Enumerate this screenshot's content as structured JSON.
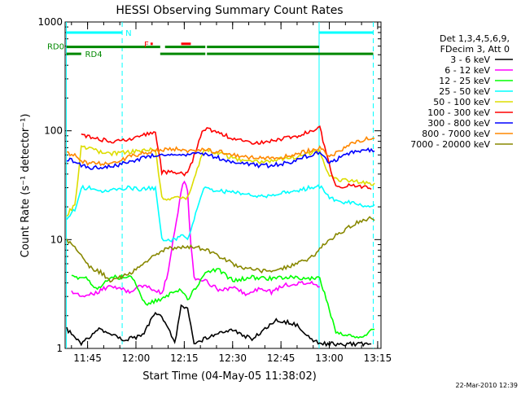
{
  "chart_data": {
    "type": "line",
    "title": "HESSI Observing Summary Count Rates",
    "xlabel": "Start Time (04-May-05 11:38:02)",
    "ylabel": "Count Rate (s⁻¹ detector⁻¹)",
    "y_scale": "log",
    "ylim": [
      1,
      1000
    ],
    "xlim_minutes": [
      0,
      98
    ],
    "x_axis_origin": "11:38:02",
    "x_ticks": [
      {
        "label": "11:45",
        "t": 6.97
      },
      {
        "label": "12:00",
        "t": 21.97
      },
      {
        "label": "12:15",
        "t": 36.97
      },
      {
        "label": "12:30",
        "t": 51.97
      },
      {
        "label": "12:45",
        "t": 66.97
      },
      {
        "label": "13:00",
        "t": 81.97
      },
      {
        "label": "13:15",
        "t": 96.97
      }
    ],
    "y_ticks": [
      {
        "label": "1",
        "v": 1
      },
      {
        "label": "10",
        "v": 10
      },
      {
        "label": "100",
        "v": 100
      },
      {
        "label": "1000",
        "v": 1000
      }
    ],
    "legend_header": [
      "Det 1,3,4,5,6,9,",
      "FDecim 3, Att 0"
    ],
    "legend_position": "right",
    "x_unit": "minutes after 11:38:02",
    "series": [
      {
        "name": "3 - 6 keV",
        "color": "#000000",
        "points": [
          [
            0.5,
            1.5
          ],
          [
            5,
            1.1
          ],
          [
            10,
            1.5
          ],
          [
            18,
            1.2
          ],
          [
            24,
            1.3
          ],
          [
            28,
            2.2
          ],
          [
            31,
            1.8
          ],
          [
            34,
            1.1
          ],
          [
            36,
            2.5
          ],
          [
            38,
            2.3
          ],
          [
            40,
            1.1
          ],
          [
            45,
            1.3
          ],
          [
            52,
            1.5
          ],
          [
            58,
            1.2
          ],
          [
            65,
            1.8
          ],
          [
            71,
            1.7
          ],
          [
            77,
            1.2
          ],
          [
            80,
            1.1
          ],
          [
            86,
            1.1
          ],
          [
            95,
            1.1
          ]
        ]
      },
      {
        "name": "6 - 12 keV",
        "color": "#ff00ff",
        "points": [
          [
            2,
            3.3
          ],
          [
            6,
            3.0
          ],
          [
            10,
            3.3
          ],
          [
            14,
            3.8
          ],
          [
            20,
            3.3
          ],
          [
            24,
            3.8
          ],
          [
            27,
            3.5
          ],
          [
            30,
            3.2
          ],
          [
            32,
            5
          ],
          [
            34,
            12
          ],
          [
            36,
            28
          ],
          [
            37,
            35
          ],
          [
            38,
            28
          ],
          [
            39,
            9
          ],
          [
            40,
            4.5
          ],
          [
            44,
            4.1
          ],
          [
            48,
            3.4
          ],
          [
            52,
            3.6
          ],
          [
            56,
            3.2
          ],
          [
            60,
            3.5
          ],
          [
            64,
            3.3
          ],
          [
            68,
            3.8
          ],
          [
            72,
            3.9
          ],
          [
            76,
            4.1
          ],
          [
            79,
            3.7
          ]
        ]
      },
      {
        "name": "12 - 25 keV",
        "color": "#00ff00",
        "points": [
          [
            2,
            4.5
          ],
          [
            6,
            4.5
          ],
          [
            10,
            3.5
          ],
          [
            14,
            4.5
          ],
          [
            18,
            4.5
          ],
          [
            21,
            4.5
          ],
          [
            25,
            2.5
          ],
          [
            29,
            2.8
          ],
          [
            33,
            3.2
          ],
          [
            36,
            3.5
          ],
          [
            38,
            2.8
          ],
          [
            44,
            5.2
          ],
          [
            48,
            5.2
          ],
          [
            52,
            4.2
          ],
          [
            58,
            4.5
          ],
          [
            64,
            4.4
          ],
          [
            70,
            4.5
          ],
          [
            76,
            4.4
          ],
          [
            79,
            4.5
          ],
          [
            84,
            1.4
          ],
          [
            88,
            1.3
          ],
          [
            92,
            1.3
          ],
          [
            96,
            1.5
          ]
        ]
      },
      {
        "name": "25 - 50 keV",
        "color": "#00ffff",
        "points": [
          [
            0.5,
            15
          ],
          [
            1.5,
            17
          ],
          [
            3,
            19
          ],
          [
            5,
            30
          ],
          [
            8,
            30
          ],
          [
            12,
            28
          ],
          [
            16,
            29
          ],
          [
            20,
            30
          ],
          [
            24,
            29
          ],
          [
            28,
            30
          ],
          [
            30,
            10
          ],
          [
            34,
            10
          ],
          [
            36,
            11
          ],
          [
            38,
            10
          ],
          [
            43,
            30
          ],
          [
            48,
            28
          ],
          [
            52,
            27
          ],
          [
            56,
            26
          ],
          [
            60,
            25
          ],
          [
            64,
            25
          ],
          [
            68,
            27
          ],
          [
            72,
            28
          ],
          [
            76,
            30
          ],
          [
            79,
            31
          ],
          [
            82,
            24
          ],
          [
            86,
            22
          ],
          [
            90,
            22
          ],
          [
            94,
            20
          ],
          [
            96,
            21
          ]
        ]
      },
      {
        "name": "50 - 100 keV",
        "color": "#dddd00",
        "points": [
          [
            0.5,
            16
          ],
          [
            1.5,
            19
          ],
          [
            3,
            20
          ],
          [
            5,
            70
          ],
          [
            8,
            68
          ],
          [
            12,
            62
          ],
          [
            16,
            62
          ],
          [
            20,
            64
          ],
          [
            24,
            66
          ],
          [
            28,
            68
          ],
          [
            30,
            24
          ],
          [
            34,
            24
          ],
          [
            38,
            24
          ],
          [
            43,
            68
          ],
          [
            48,
            62
          ],
          [
            52,
            56
          ],
          [
            56,
            52
          ],
          [
            60,
            52
          ],
          [
            64,
            53
          ],
          [
            68,
            56
          ],
          [
            72,
            58
          ],
          [
            76,
            62
          ],
          [
            79,
            65
          ],
          [
            82,
            38
          ],
          [
            86,
            35
          ],
          [
            90,
            34
          ],
          [
            94,
            33
          ],
          [
            96,
            33
          ]
        ]
      },
      {
        "name": "100 - 300 keV",
        "color": "#ff0000",
        "points": [
          [
            5,
            90
          ],
          [
            8,
            88
          ],
          [
            12,
            82
          ],
          [
            16,
            80
          ],
          [
            20,
            84
          ],
          [
            24,
            90
          ],
          [
            28,
            100
          ],
          [
            30,
            42
          ],
          [
            34,
            42
          ],
          [
            38,
            40
          ],
          [
            43,
            105
          ],
          [
            48,
            95
          ],
          [
            52,
            85
          ],
          [
            56,
            80
          ],
          [
            60,
            78
          ],
          [
            64,
            80
          ],
          [
            68,
            85
          ],
          [
            72,
            90
          ],
          [
            76,
            100
          ],
          [
            79,
            108
          ],
          [
            82,
            48
          ],
          [
            84,
            30
          ],
          [
            88,
            32
          ],
          [
            92,
            31
          ],
          [
            95,
            29
          ]
        ]
      },
      {
        "name": "300 - 800 keV",
        "color": "#0000ff",
        "points": [
          [
            0.5,
            55
          ],
          [
            3,
            52
          ],
          [
            5,
            48
          ],
          [
            8,
            46
          ],
          [
            12,
            46
          ],
          [
            16,
            48
          ],
          [
            20,
            52
          ],
          [
            24,
            56
          ],
          [
            28,
            60
          ],
          [
            30,
            60
          ],
          [
            34,
            62
          ],
          [
            38,
            60
          ],
          [
            43,
            62
          ],
          [
            48,
            56
          ],
          [
            52,
            52
          ],
          [
            56,
            50
          ],
          [
            60,
            48
          ],
          [
            64,
            48
          ],
          [
            68,
            50
          ],
          [
            72,
            54
          ],
          [
            76,
            60
          ],
          [
            79,
            64
          ],
          [
            82,
            50
          ],
          [
            86,
            58
          ],
          [
            90,
            65
          ],
          [
            94,
            67
          ],
          [
            96,
            65
          ]
        ]
      },
      {
        "name": "800 - 7000 keV",
        "color": "#ff8800",
        "points": [
          [
            0.5,
            62
          ],
          [
            3,
            60
          ],
          [
            5,
            52
          ],
          [
            8,
            50
          ],
          [
            12,
            50
          ],
          [
            16,
            52
          ],
          [
            20,
            58
          ],
          [
            24,
            62
          ],
          [
            28,
            66
          ],
          [
            30,
            66
          ],
          [
            34,
            68
          ],
          [
            38,
            66
          ],
          [
            43,
            67
          ],
          [
            48,
            64
          ],
          [
            52,
            60
          ],
          [
            56,
            57
          ],
          [
            60,
            56
          ],
          [
            64,
            56
          ],
          [
            68,
            58
          ],
          [
            72,
            62
          ],
          [
            76,
            66
          ],
          [
            79,
            70
          ],
          [
            82,
            58
          ],
          [
            86,
            68
          ],
          [
            90,
            78
          ],
          [
            94,
            86
          ],
          [
            96,
            85
          ]
        ]
      },
      {
        "name": "7000 - 20000 keV",
        "color": "#888800",
        "points": [
          [
            0.5,
            10
          ],
          [
            2,
            9
          ],
          [
            4,
            8
          ],
          [
            6,
            6.5
          ],
          [
            8,
            5.5
          ],
          [
            11,
            5.0
          ],
          [
            14,
            4.2
          ],
          [
            17,
            4.5
          ],
          [
            20,
            4.8
          ],
          [
            23,
            5.8
          ],
          [
            26,
            6.5
          ],
          [
            29,
            7.5
          ],
          [
            32,
            8.5
          ],
          [
            35,
            8.3
          ],
          [
            38,
            8.5
          ],
          [
            41,
            8.5
          ],
          [
            44,
            8
          ],
          [
            48,
            7
          ],
          [
            52,
            6
          ],
          [
            56,
            5.5
          ],
          [
            60,
            5.2
          ],
          [
            64,
            5.2
          ],
          [
            68,
            5.5
          ],
          [
            72,
            6
          ],
          [
            76,
            6.8
          ],
          [
            78,
            7.5
          ],
          [
            80,
            9
          ],
          [
            84,
            11
          ],
          [
            88,
            13
          ],
          [
            92,
            15
          ],
          [
            95,
            16
          ],
          [
            96,
            15
          ]
        ]
      }
    ],
    "vertical_lines": [
      {
        "t": 0.4,
        "style": "solid"
      },
      {
        "t": 17.7,
        "style": "dashed"
      },
      {
        "t": 78.8,
        "style": "solid"
      },
      {
        "t": 95.6,
        "style": "dashed"
      }
    ],
    "flag_bars": [
      {
        "label": "N",
        "color": "#00ffff",
        "y": 800,
        "segments": [
          [
            0.4,
            17.7
          ],
          [
            78.8,
            95.6
          ]
        ]
      },
      {
        "label": "F",
        "color": "#ff0000",
        "y": 630,
        "segments": [
          [
            26.5,
            27.2
          ],
          [
            36,
            39
          ]
        ]
      },
      {
        "label": "RD0",
        "color": "#008800",
        "y": 590,
        "segments": [
          [
            0.4,
            29.5
          ],
          [
            31,
            43.5
          ],
          [
            44,
            78.8
          ]
        ]
      },
      {
        "label": "RD4",
        "color": "#008800",
        "y": 510,
        "segments": [
          [
            0.4,
            5
          ],
          [
            29.5,
            43.5
          ],
          [
            44,
            78.8
          ],
          [
            78.8,
            95.6
          ]
        ]
      }
    ]
  },
  "timestamp": "22-Mar-2010 12:39"
}
